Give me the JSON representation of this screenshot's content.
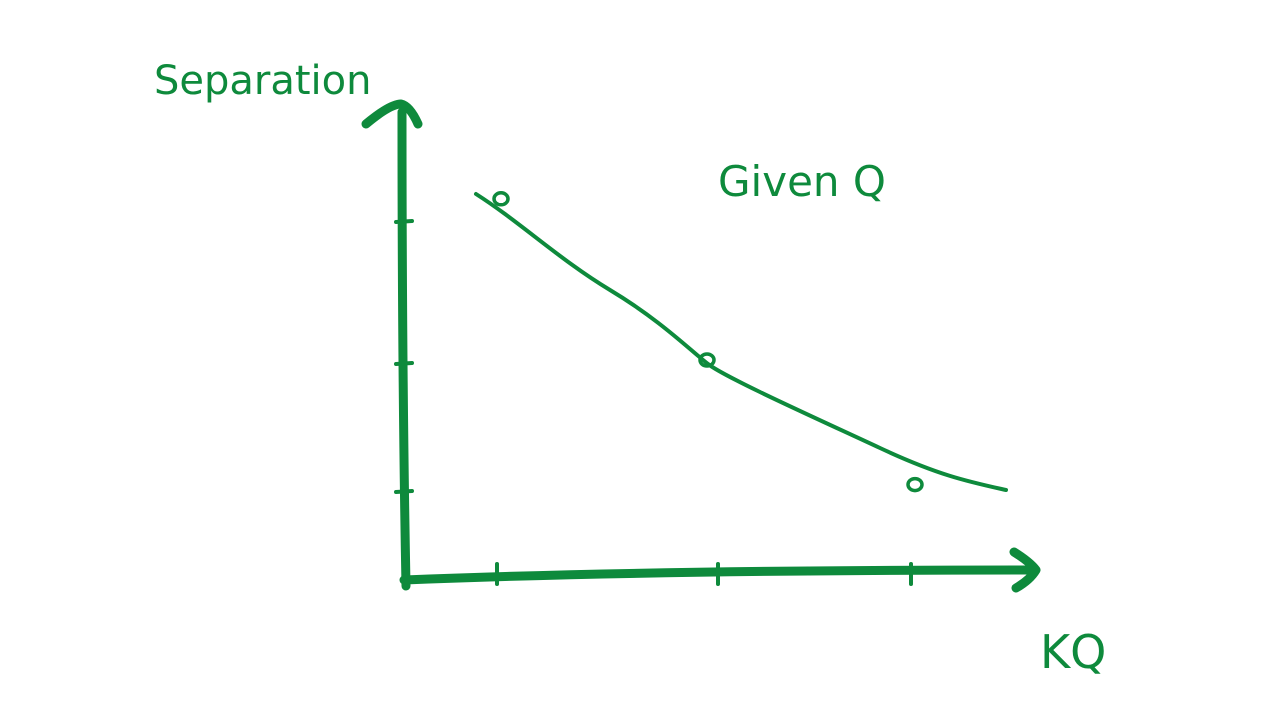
{
  "chart_data": {
    "type": "line",
    "ylabel": "Separation",
    "xlabel": "KQ",
    "annotation": "Given Q",
    "xlim": [
      0,
      4
    ],
    "ylim": [
      0,
      4
    ],
    "x_ticks": [
      1,
      2,
      3
    ],
    "y_ticks": [
      1,
      2,
      3
    ],
    "series": [
      {
        "values": [
          {
            "x": 1.0,
            "y": 3.1
          },
          {
            "x": 2.0,
            "y": 2.0
          },
          {
            "x": 3.0,
            "y": 1.05
          }
        ]
      }
    ],
    "curve_x_range": [
      0.85,
      3.45
    ],
    "grid": false,
    "legend": "none",
    "colors": {
      "ink": "#0e8a3c"
    }
  }
}
